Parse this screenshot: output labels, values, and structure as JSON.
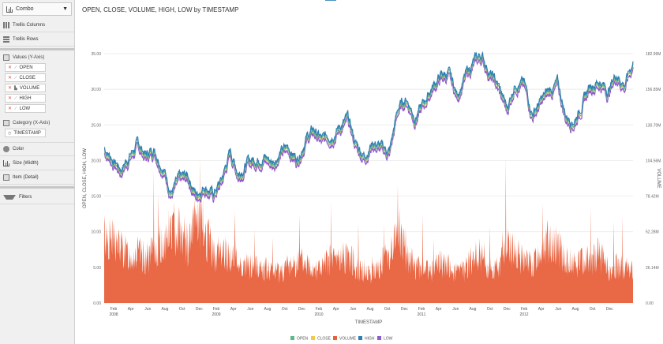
{
  "sidebar": {
    "chart_type": "Combo",
    "trellis_columns": "Trellis Columns",
    "trellis_rows": "Trellis Rows",
    "values_header": "Values (Y-Axis)",
    "values": [
      "OPEN",
      "CLOSE",
      "VOLUME",
      "HIGH",
      "LOW"
    ],
    "category_header": "Category (X-Axis)",
    "category_value": "TIMESTAMP",
    "color": "Color",
    "size": "Size (Width)",
    "item": "Item (Detail)",
    "filters": "Filters"
  },
  "colors": {
    "open": "#5fb88a",
    "close": "#f2c94c",
    "volume": "#e8603c",
    "high": "#2f7fb5",
    "low": "#8e5bd0",
    "grid": "#e6e6e6"
  },
  "chart_data": {
    "type": "combo",
    "title": "OPEN, CLOSE, VOLUME, HIGH, LOW by TIMESTAMP",
    "xlabel": "TIMESTAMP",
    "ylabel": "OPEN, CLOSE, HIGH, LOW",
    "y2label": "VOLUME",
    "ylim": [
      0,
      35
    ],
    "y_ticks": [
      "0.00",
      "5.00",
      "10.00",
      "15.00",
      "20.00",
      "25.00",
      "30.00",
      "35.00"
    ],
    "y2_ticks": [
      "0.00",
      "26.14M",
      "52.28M",
      "78.42M",
      "104.56M",
      "130.70M",
      "156.85M",
      "182.99M"
    ],
    "x_months": [
      "Feb",
      "Apr",
      "Jun",
      "Aug",
      "Oct",
      "Dec",
      "Feb",
      "Apr",
      "Jun",
      "Aug",
      "Oct",
      "Dec",
      "Feb",
      "Apr",
      "Jun",
      "Aug",
      "Oct",
      "Dec",
      "Feb",
      "Apr",
      "Jun",
      "Aug",
      "Oct",
      "Dec",
      "Feb",
      "Apr",
      "Jun",
      "Aug",
      "Oct",
      "Dec"
    ],
    "x_years": [
      "2008",
      "2009",
      "2010",
      "2011",
      "2012"
    ],
    "legend": [
      "OPEN",
      "CLOSE",
      "VOLUME",
      "HIGH",
      "LOW"
    ],
    "price_series_monthly": [
      21.5,
      20.0,
      18.5,
      20.5,
      22.0,
      20.5,
      21.5,
      19.0,
      15.5,
      17.0,
      17.5,
      15.0,
      16.5,
      15.0,
      17.0,
      21.0,
      18.0,
      19.5,
      20.0,
      20.5,
      19.5,
      21.0,
      21.5,
      20.0,
      23.0,
      24.0,
      22.5,
      23.5,
      24.5,
      25.5,
      22.0,
      20.5,
      22.5,
      21.5,
      21.0,
      27.0,
      28.5,
      26.0,
      27.5,
      30.0,
      31.5,
      32.0,
      29.0,
      31.5,
      33.5,
      34.5,
      32.0,
      30.0,
      27.0,
      31.0,
      30.5,
      26.5,
      28.0,
      29.5,
      30.5,
      26.0,
      25.5,
      28.0,
      30.5,
      31.0,
      29.5,
      32.0,
      30.5,
      33.5
    ],
    "volume_monthly_M": [
      55,
      50,
      45,
      38,
      40,
      36,
      42,
      48,
      60,
      62,
      45,
      70,
      58,
      40,
      42,
      38,
      32,
      30,
      30,
      28,
      25,
      26,
      30,
      34,
      32,
      30,
      28,
      36,
      35,
      40,
      30,
      26,
      24,
      32,
      42,
      55,
      42,
      30,
      28,
      26,
      32,
      30,
      24,
      28,
      38,
      40,
      26,
      30,
      48,
      40,
      34,
      30,
      42,
      52,
      46,
      34,
      32,
      36,
      35,
      40,
      28,
      30,
      28,
      26
    ]
  }
}
